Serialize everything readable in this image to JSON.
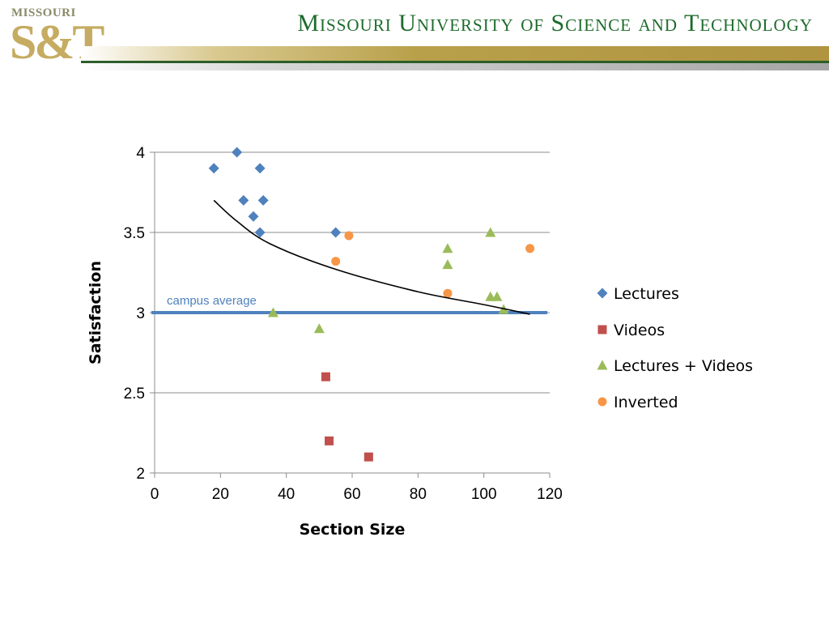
{
  "header": {
    "logo_top": "MISSOURI",
    "logo_main": "S&T",
    "title": "Missouri University of Science and Technology"
  },
  "colors": {
    "brand_green": "#1d6b2b",
    "brand_gold": "#b8a04a",
    "lectures": "#4f81bd",
    "videos": "#c0504d",
    "lectures_videos": "#9bbb59",
    "inverted": "#f79646",
    "campus_line": "#4f81bd"
  },
  "chart_data": {
    "type": "scatter",
    "title": "",
    "xlabel": "Section Size",
    "ylabel": "Satisfaction",
    "xlim": [
      0,
      120
    ],
    "ylim": [
      2,
      4
    ],
    "xticks": [
      "0",
      "20",
      "40",
      "60",
      "80",
      "100",
      "120"
    ],
    "yticks": [
      "2",
      "2.5",
      "3",
      "3.5",
      "4"
    ],
    "grid": "horizontal",
    "legend_position": "right",
    "series": [
      {
        "name": "Lectures",
        "marker": "diamond",
        "color": "#4f81bd",
        "points": [
          [
            18,
            3.9
          ],
          [
            25,
            4.0
          ],
          [
            27,
            3.7
          ],
          [
            30,
            3.6
          ],
          [
            32,
            3.9
          ],
          [
            32,
            3.5
          ],
          [
            33,
            3.7
          ],
          [
            55,
            3.5
          ]
        ]
      },
      {
        "name": "Videos",
        "marker": "square",
        "color": "#c0504d",
        "points": [
          [
            52,
            2.6
          ],
          [
            53,
            2.2
          ],
          [
            65,
            2.1
          ]
        ]
      },
      {
        "name": "Lectures + Videos",
        "marker": "triangle",
        "color": "#9bbb59",
        "points": [
          [
            36,
            3.0
          ],
          [
            50,
            2.9
          ],
          [
            89,
            3.4
          ],
          [
            89,
            3.3
          ],
          [
            102,
            3.5
          ],
          [
            102,
            3.1
          ],
          [
            104,
            3.1
          ],
          [
            106,
            3.02
          ]
        ]
      },
      {
        "name": "Inverted",
        "marker": "circle",
        "color": "#f79646",
        "points": [
          [
            55,
            3.32
          ],
          [
            59,
            3.48
          ],
          [
            89,
            3.12
          ],
          [
            114,
            3.4
          ]
        ]
      }
    ],
    "trendline": {
      "type": "logarithmic",
      "x_range": [
        18,
        114
      ],
      "points": [
        [
          18,
          3.7
        ],
        [
          25,
          3.57
        ],
        [
          35,
          3.43
        ],
        [
          55,
          3.27
        ],
        [
          80,
          3.13
        ],
        [
          100,
          3.05
        ],
        [
          114,
          2.99
        ]
      ]
    },
    "reference_line": {
      "label": "campus average",
      "y": 3.0
    }
  }
}
